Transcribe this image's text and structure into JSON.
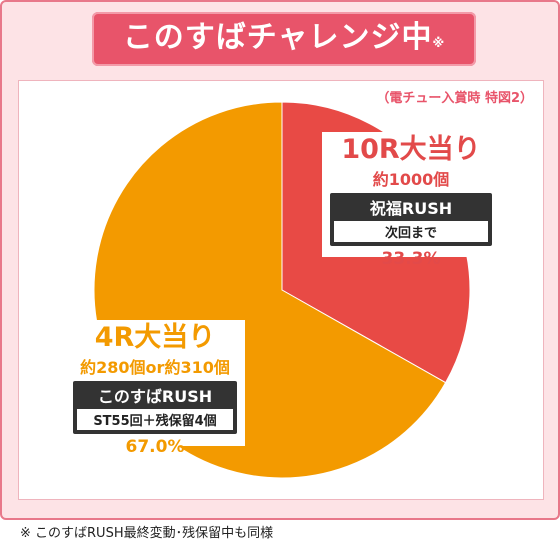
{
  "header": {
    "title": "このすばチャレンジ中",
    "title_note": "※"
  },
  "source_note": "（電チュー入賞時 特図2）",
  "chart_data": {
    "type": "pie",
    "categories": [
      "10R大当り",
      "4R大当り"
    ],
    "values": [
      33.3,
      67.0
    ],
    "colors": [
      "#e84a45",
      "#f39a00"
    ],
    "slices": [
      {
        "label": "10R大当り",
        "payout": "約1000個",
        "rush_name": "祝福RUSH",
        "rush_detail": "次回まで",
        "percent_label": "33.3%",
        "value": 33.3,
        "color": "#e84a45"
      },
      {
        "label": "4R大当り",
        "payout": "約280個or約310個",
        "rush_name": "このすばRUSH",
        "rush_detail": "ST55回＋残保留4個",
        "percent_label": "67.0%",
        "value": 67.0,
        "color": "#f39a00"
      }
    ]
  },
  "footnote": "※ このすばRUSH最終変動･残保留中も同様"
}
